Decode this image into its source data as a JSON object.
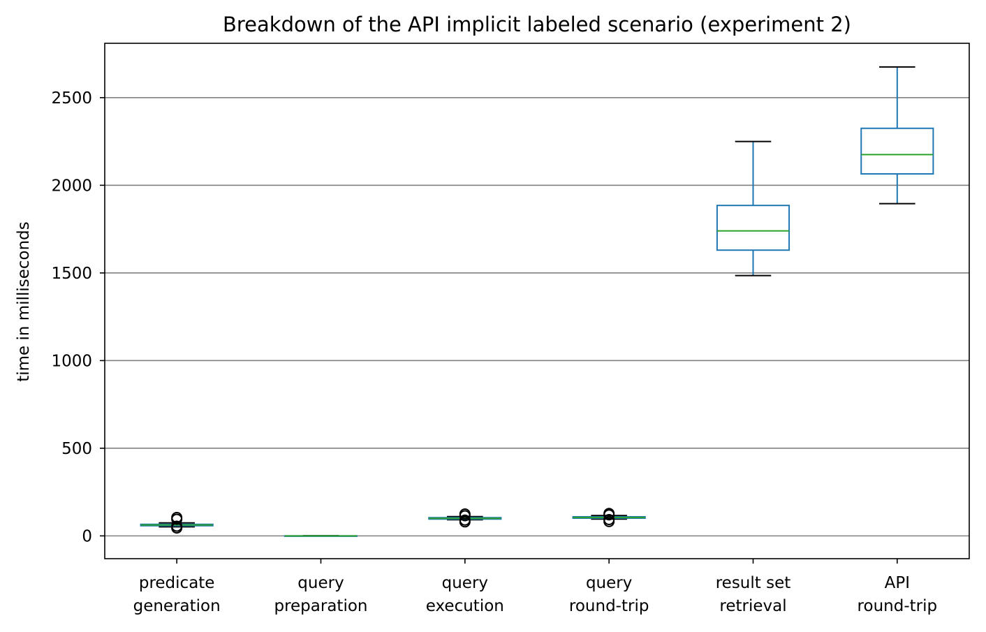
{
  "chart_data": {
    "type": "box",
    "title": "Breakdown of the API implicit labeled scenario (experiment 2)",
    "xlabel": "",
    "ylabel": "time in milliseconds",
    "ylim": [
      -130,
      2810
    ],
    "yticks": [
      0,
      500,
      1000,
      1500,
      2000,
      2500
    ],
    "grid": "horizontal",
    "categories": [
      [
        "predicate",
        "generation"
      ],
      [
        "query",
        "preparation"
      ],
      [
        "query",
        "execution"
      ],
      [
        "query",
        "round-trip"
      ],
      [
        "result set",
        "retrieval"
      ],
      [
        "API",
        "round-trip"
      ]
    ],
    "boxes": [
      {
        "whislo": 52,
        "q1": 58,
        "med": 62,
        "q3": 66,
        "whishi": 74,
        "fliers": [
          45,
          55,
          95,
          105
        ]
      },
      {
        "whislo": 0,
        "q1": 0,
        "med": 0,
        "q3": 0,
        "whishi": 1,
        "fliers": []
      },
      {
        "whislo": 92,
        "q1": 96,
        "med": 100,
        "q3": 104,
        "whishi": 110,
        "fliers": [
          80,
          90,
          115,
          125
        ]
      },
      {
        "whislo": 96,
        "q1": 101,
        "med": 105,
        "q3": 109,
        "whishi": 116,
        "fliers": [
          82,
          93,
          120,
          128
        ]
      },
      {
        "whislo": 1485,
        "q1": 1630,
        "med": 1740,
        "q3": 1885,
        "whishi": 2250,
        "fliers": []
      },
      {
        "whislo": 1895,
        "q1": 2065,
        "med": 2175,
        "q3": 2325,
        "whishi": 2675,
        "fliers": []
      }
    ],
    "colors": {
      "box": "#1f77b4",
      "median": "#2ca02c",
      "whisker": "#1f77b4",
      "cap": "#000000",
      "grid": "#808080",
      "flier": "#000000"
    }
  }
}
